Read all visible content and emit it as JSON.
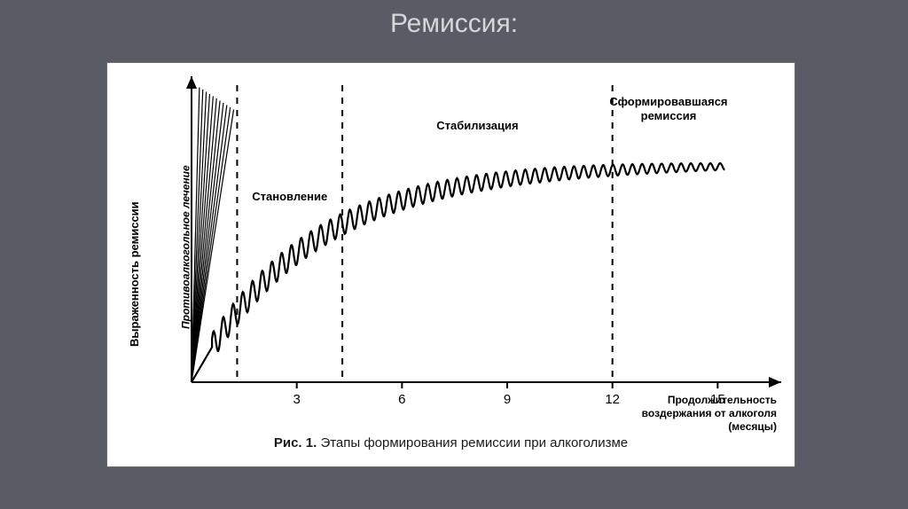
{
  "title": "Ремиссия:",
  "chart": {
    "type": "line",
    "background_color": "#ffffff",
    "stroke_color": "#000000",
    "axis_color": "#000000",
    "dashed_color": "#000000",
    "line_width": 2.2,
    "axis_width": 2,
    "y_axis_label": "Выраженность ремиссии",
    "x_axis_label_lines": [
      "Продолжительность",
      "воздержания от алкоголя",
      "(месяцы)"
    ],
    "x_ticks": [
      3,
      6,
      9,
      12,
      15
    ],
    "y_max": 1.0,
    "phases": [
      {
        "label": "Противоалкогольное лечение",
        "x_end_months": 1.3,
        "italic": true
      },
      {
        "label": "Становление",
        "x_end_months": 4.3
      },
      {
        "label": "Стабилизация",
        "x_end_months": 12.0
      },
      {
        "label": "Сформировавшаяся ремиссия",
        "x_end_months": 15.5
      }
    ],
    "curve": {
      "type": "saturating_oscillation",
      "asymptote": 0.78,
      "rate": 0.3,
      "oscillation_amp_start": 0.05,
      "oscillation_amp_end": 0.012,
      "oscillation_freq": 3.6
    },
    "fan_lines_count": 11,
    "label_fontsize": 13,
    "tick_fontsize": 15,
    "caption_prefix": "Рис. 1.",
    "caption_text": "Этапы формирования ремиссии при алкоголизме"
  }
}
